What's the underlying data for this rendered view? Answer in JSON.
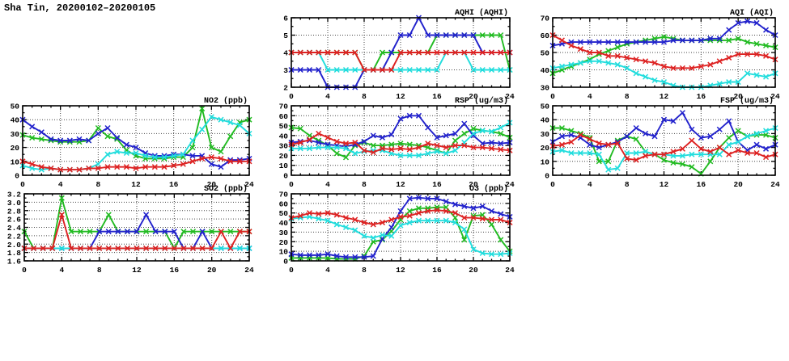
{
  "page_title": "Sha Tin, 20200102–20200105",
  "station": "Sha Tin",
  "date_range": "20200102–20200105",
  "hours": [
    0,
    1,
    2,
    3,
    4,
    5,
    6,
    7,
    8,
    9,
    10,
    11,
    12,
    13,
    14,
    15,
    16,
    17,
    18,
    19,
    20,
    21,
    22,
    23,
    24
  ],
  "series_colors": {
    "green": "#22bb22",
    "blue": "#2222cc",
    "cyan": "#22dddd",
    "red": "#dd2222"
  },
  "chart_data": [
    {
      "id": "aqhi",
      "type": "line",
      "title": "AQHI (AQHI)",
      "xlabel": "",
      "ylabel": "",
      "xlim": [
        0,
        24
      ],
      "ylim": [
        2,
        6
      ],
      "x_ticks": [
        "0",
        "4",
        "8",
        "12",
        "16",
        "20",
        "24"
      ],
      "y_ticks": [
        "2",
        "3",
        "4",
        "5",
        "6"
      ],
      "grid": "dotted",
      "legend": "none",
      "series": [
        {
          "name": "green",
          "color": "#22bb22",
          "values": [
            4,
            4,
            4,
            4,
            4,
            4,
            4,
            4,
            3,
            3,
            4,
            4,
            4,
            4,
            4,
            4,
            5,
            5,
            5,
            5,
            5,
            5,
            5,
            5,
            3
          ]
        },
        {
          "name": "blue",
          "color": "#2222cc",
          "values": [
            3,
            3,
            3,
            3,
            2,
            2,
            2,
            2,
            3,
            3,
            3,
            4,
            5,
            5,
            6,
            5,
            5,
            5,
            5,
            5,
            5,
            4,
            4,
            4,
            4
          ]
        },
        {
          "name": "cyan",
          "color": "#22dddd",
          "values": [
            4,
            4,
            4,
            4,
            3,
            3,
            3,
            3,
            3,
            3,
            3,
            3,
            3,
            3,
            3,
            3,
            3,
            4,
            4,
            4,
            3,
            3,
            3,
            3,
            3
          ]
        },
        {
          "name": "red",
          "color": "#dd2222",
          "values": [
            4,
            4,
            4,
            4,
            4,
            4,
            4,
            4,
            3,
            3,
            3,
            3,
            4,
            4,
            4,
            4,
            4,
            4,
            4,
            4,
            4,
            4,
            4,
            4,
            4
          ]
        }
      ]
    },
    {
      "id": "aqi",
      "type": "line",
      "title": "AQI (AQI)",
      "xlabel": "",
      "ylabel": "",
      "xlim": [
        0,
        24
      ],
      "ylim": [
        30,
        70
      ],
      "x_ticks": [
        "0",
        "4",
        "8",
        "12",
        "16",
        "20",
        "24"
      ],
      "y_ticks": [
        "30",
        "40",
        "50",
        "60",
        "70"
      ],
      "grid": "dotted",
      "legend": "none",
      "series": [
        {
          "name": "green",
          "color": "#22bb22",
          "values": [
            38,
            40,
            42,
            44,
            46,
            49,
            51,
            53,
            55,
            56,
            57,
            58,
            59,
            58,
            57,
            57,
            57,
            57,
            57,
            57,
            58,
            56,
            55,
            54,
            53
          ]
        },
        {
          "name": "blue",
          "color": "#2222cc",
          "values": [
            54,
            55,
            56,
            56,
            56,
            56,
            56,
            56,
            56,
            56,
            56,
            56,
            56,
            57,
            57,
            57,
            57,
            58,
            58,
            63,
            67,
            68,
            67,
            63,
            60
          ]
        },
        {
          "name": "cyan",
          "color": "#22dddd",
          "values": [
            41,
            42,
            43,
            44,
            45,
            45,
            44,
            43,
            41,
            38,
            36,
            34,
            33,
            31,
            30,
            30,
            30,
            31,
            32,
            33,
            33,
            38,
            37,
            36,
            38
          ]
        },
        {
          "name": "red",
          "color": "#dd2222",
          "values": [
            60,
            57,
            54,
            52,
            50,
            50,
            48,
            48,
            47,
            46,
            45,
            44,
            42,
            41,
            41,
            41,
            42,
            43,
            45,
            47,
            49,
            49,
            49,
            48,
            46
          ]
        }
      ]
    },
    {
      "id": "no2",
      "type": "line",
      "title": "NO2 (ppb)",
      "xlabel": "",
      "ylabel": "",
      "xlim": [
        0,
        24
      ],
      "ylim": [
        0,
        50
      ],
      "x_ticks": [
        "0",
        "4",
        "8",
        "12",
        "16",
        "20",
        "24"
      ],
      "y_ticks": [
        "0",
        "10",
        "20",
        "30",
        "40",
        "50"
      ],
      "grid": "dotted",
      "legend": "none",
      "series": [
        {
          "name": "green",
          "color": "#22bb22",
          "values": [
            29,
            27,
            26,
            25,
            24,
            24,
            24,
            25,
            34,
            28,
            26,
            18,
            14,
            12,
            12,
            12,
            13,
            13,
            20,
            48,
            20,
            17,
            28,
            38,
            40
          ]
        },
        {
          "name": "blue",
          "color": "#2222cc",
          "values": [
            40,
            35,
            31,
            26,
            25,
            25,
            26,
            25,
            30,
            34,
            27,
            22,
            20,
            16,
            14,
            14,
            15,
            15,
            14,
            14,
            8,
            6,
            11,
            11,
            12
          ]
        },
        {
          "name": "cyan",
          "color": "#22dddd",
          "values": [
            7,
            5,
            4,
            5,
            4,
            4,
            4,
            5,
            8,
            15,
            17,
            16,
            16,
            14,
            13,
            13,
            14,
            15,
            25,
            33,
            42,
            40,
            38,
            36,
            30
          ]
        },
        {
          "name": "red",
          "color": "#dd2222",
          "values": [
            10,
            8,
            6,
            5,
            4,
            4,
            4,
            5,
            5,
            6,
            6,
            6,
            5,
            6,
            6,
            6,
            7,
            8,
            10,
            12,
            13,
            12,
            10,
            10,
            10
          ]
        }
      ]
    },
    {
      "id": "rsp",
      "type": "line",
      "title": "RSP (ug/m3)",
      "xlabel": "",
      "ylabel": "",
      "xlim": [
        0,
        24
      ],
      "ylim": [
        0,
        70
      ],
      "x_ticks": [
        "0",
        "4",
        "8",
        "12",
        "16",
        "20",
        "24"
      ],
      "y_ticks": [
        "0",
        "10",
        "20",
        "30",
        "40",
        "50",
        "60",
        "70"
      ],
      "grid": "dotted",
      "legend": "none",
      "series": [
        {
          "name": "green",
          "color": "#22bb22",
          "values": [
            48,
            47,
            40,
            35,
            30,
            22,
            18,
            30,
            33,
            30,
            30,
            31,
            32,
            31,
            30,
            28,
            25,
            22,
            35,
            42,
            47,
            45,
            44,
            42,
            38
          ]
        },
        {
          "name": "blue",
          "color": "#2222cc",
          "values": [
            33,
            34,
            35,
            33,
            31,
            30,
            29,
            31,
            34,
            40,
            38,
            41,
            57,
            60,
            60,
            48,
            38,
            40,
            42,
            52,
            40,
            32,
            33,
            32,
            33
          ]
        },
        {
          "name": "cyan",
          "color": "#22dddd",
          "values": [
            27,
            27,
            27,
            28,
            28,
            28,
            27,
            22,
            24,
            25,
            25,
            22,
            20,
            20,
            20,
            22,
            24,
            22,
            25,
            33,
            42,
            45,
            44,
            48,
            53
          ]
        },
        {
          "name": "red",
          "color": "#dd2222",
          "values": [
            31,
            33,
            36,
            42,
            38,
            34,
            32,
            33,
            25,
            23,
            27,
            26,
            27,
            26,
            28,
            32,
            30,
            28,
            30,
            30,
            28,
            28,
            27,
            26,
            25
          ]
        }
      ]
    },
    {
      "id": "fsp",
      "type": "line",
      "title": "FSP (ug/m3)",
      "xlabel": "",
      "ylabel": "",
      "xlim": [
        0,
        24
      ],
      "ylim": [
        0,
        50
      ],
      "x_ticks": [
        "0",
        "4",
        "8",
        "12",
        "16",
        "20",
        "24"
      ],
      "y_ticks": [
        "0",
        "10",
        "20",
        "30",
        "40",
        "50"
      ],
      "grid": "dotted",
      "legend": "none",
      "series": [
        {
          "name": "green",
          "color": "#22bb22",
          "values": [
            34,
            34,
            32,
            30,
            27,
            10,
            10,
            25,
            28,
            26,
            17,
            15,
            11,
            9,
            8,
            6,
            1,
            10,
            20,
            27,
            32,
            28,
            29,
            29,
            27
          ]
        },
        {
          "name": "blue",
          "color": "#2222cc",
          "values": [
            24,
            28,
            29,
            27,
            22,
            20,
            22,
            24,
            28,
            34,
            30,
            28,
            40,
            39,
            45,
            33,
            27,
            28,
            33,
            39,
            24,
            18,
            22,
            19,
            22
          ]
        },
        {
          "name": "cyan",
          "color": "#22dddd",
          "values": [
            17,
            18,
            16,
            16,
            16,
            15,
            4,
            5,
            16,
            16,
            17,
            15,
            15,
            14,
            14,
            15,
            15,
            15,
            15,
            22,
            24,
            28,
            30,
            32,
            34
          ]
        },
        {
          "name": "red",
          "color": "#dd2222",
          "values": [
            21,
            22,
            24,
            29,
            26,
            23,
            22,
            23,
            12,
            11,
            14,
            15,
            15,
            17,
            19,
            25,
            19,
            17,
            20,
            15,
            18,
            16,
            16,
            13,
            15
          ]
        }
      ]
    },
    {
      "id": "so2",
      "type": "line",
      "title": "SO2 (ppb)",
      "xlabel": "",
      "ylabel": "",
      "xlim": [
        0,
        24
      ],
      "ylim": [
        1.6,
        3.2
      ],
      "x_ticks": [
        "0",
        "4",
        "8",
        "12",
        "16",
        "20",
        "24"
      ],
      "y_ticks": [
        "1.6",
        "1.8",
        "2.0",
        "2.2",
        "2.4",
        "2.6",
        "2.8",
        "3.0",
        "3.2"
      ],
      "grid": "dotted",
      "legend": "none",
      "series": [
        {
          "name": "green",
          "color": "#22bb22",
          "values": [
            2.3,
            1.9,
            1.9,
            1.9,
            3.1,
            2.3,
            2.3,
            2.3,
            2.3,
            2.7,
            2.3,
            2.3,
            2.3,
            2.3,
            2.3,
            2.3,
            1.9,
            2.3,
            2.3,
            2.3,
            2.3,
            2.3,
            2.3,
            2.3,
            2.3
          ]
        },
        {
          "name": "blue",
          "color": "#2222cc",
          "values": [
            1.9,
            1.9,
            1.9,
            1.9,
            1.9,
            1.9,
            1.9,
            1.9,
            2.3,
            2.3,
            2.3,
            2.3,
            2.3,
            2.7,
            2.3,
            2.3,
            2.3,
            1.9,
            1.9,
            2.3,
            1.9,
            1.9,
            1.9,
            1.9,
            1.9
          ]
        },
        {
          "name": "cyan",
          "color": "#22dddd",
          "values": [
            1.9,
            1.9,
            1.9,
            1.9,
            1.9,
            1.9,
            1.9,
            1.9,
            1.9,
            1.9,
            1.9,
            1.9,
            1.9,
            1.9,
            1.9,
            1.9,
            1.9,
            1.9,
            1.9,
            1.9,
            1.9,
            1.9,
            1.9,
            1.9,
            1.9
          ]
        },
        {
          "name": "red",
          "color": "#dd2222",
          "values": [
            1.9,
            1.9,
            1.9,
            1.9,
            2.7,
            1.9,
            1.9,
            1.9,
            1.9,
            1.9,
            1.9,
            1.9,
            1.9,
            1.9,
            1.9,
            1.9,
            1.9,
            1.9,
            1.9,
            1.9,
            1.9,
            2.3,
            1.9,
            2.3,
            2.3
          ]
        }
      ]
    },
    {
      "id": "o3",
      "type": "line",
      "title": "O3 (ppb)",
      "xlabel": "",
      "ylabel": "",
      "xlim": [
        0,
        24
      ],
      "ylim": [
        0,
        70
      ],
      "x_ticks": [
        "0",
        "4",
        "8",
        "12",
        "16",
        "20",
        "24"
      ],
      "y_ticks": [
        "0",
        "10",
        "20",
        "30",
        "40",
        "50",
        "60",
        "70"
      ],
      "grid": "dotted",
      "legend": "none",
      "series": [
        {
          "name": "green",
          "color": "#22bb22",
          "values": [
            3,
            3,
            3,
            3,
            3,
            2,
            2,
            2,
            5,
            20,
            22,
            31,
            43,
            52,
            55,
            55,
            56,
            56,
            45,
            22,
            47,
            48,
            38,
            22,
            10
          ]
        },
        {
          "name": "blue",
          "color": "#2222cc",
          "values": [
            7,
            6,
            6,
            6,
            7,
            5,
            4,
            4,
            4,
            5,
            23,
            35,
            52,
            65,
            66,
            65,
            65,
            62,
            59,
            57,
            55,
            57,
            52,
            49,
            46
          ]
        },
        {
          "name": "cyan",
          "color": "#22dddd",
          "values": [
            44,
            45,
            46,
            44,
            42,
            38,
            35,
            32,
            26,
            24,
            27,
            26,
            37,
            40,
            42,
            42,
            42,
            42,
            40,
            33,
            12,
            8,
            7,
            7,
            8
          ]
        },
        {
          "name": "red",
          "color": "#dd2222",
          "values": [
            45,
            47,
            50,
            49,
            50,
            48,
            45,
            43,
            40,
            38,
            40,
            43,
            46,
            47,
            50,
            52,
            53,
            52,
            50,
            45,
            45,
            44,
            43,
            43,
            40
          ]
        }
      ]
    }
  ]
}
